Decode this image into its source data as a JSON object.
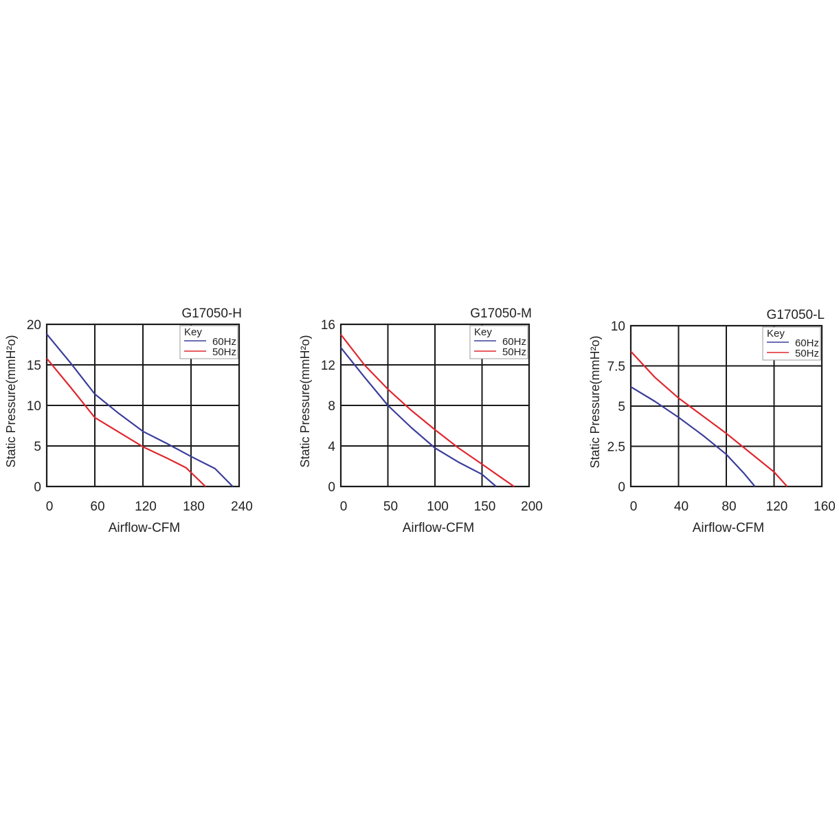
{
  "colors": {
    "s60": "#3a3d9a",
    "s50": "#e0262e",
    "grid": "#1a1a1a"
  },
  "chart_data": [
    {
      "type": "line",
      "title": "G17050-H",
      "xlabel": "Airflow-CFM",
      "ylabel": "Static Pressure(mmH²o)",
      "xlim": [
        0,
        240
      ],
      "ylim": [
        0,
        20
      ],
      "xticks": [
        "0",
        "60",
        "120",
        "180",
        "240"
      ],
      "yticks": [
        "0",
        "5",
        "10",
        "15",
        "20"
      ],
      "legend": {
        "title": "Key",
        "placement": "top-right"
      },
      "series": [
        {
          "name": "60Hz",
          "color": "#3a3d9a",
          "points": [
            [
              0,
              18.8
            ],
            [
              30,
              15.2
            ],
            [
              60,
              11.4
            ],
            [
              90,
              9.0
            ],
            [
              120,
              6.8
            ],
            [
              150,
              5.3
            ],
            [
              180,
              3.7
            ],
            [
              210,
              2.2
            ],
            [
              232,
              0
            ]
          ]
        },
        {
          "name": "50Hz",
          "color": "#e0262e",
          "points": [
            [
              0,
              15.8
            ],
            [
              30,
              12.2
            ],
            [
              60,
              8.5
            ],
            [
              90,
              6.7
            ],
            [
              120,
              4.9
            ],
            [
              150,
              3.5
            ],
            [
              174,
              2.3
            ],
            [
              198,
              0
            ]
          ]
        }
      ]
    },
    {
      "type": "line",
      "title": "G17050-M",
      "xlabel": "Airflow-CFM",
      "ylabel": "Static Pressure(mmH²o)",
      "xlim": [
        0,
        200
      ],
      "ylim": [
        0,
        16
      ],
      "xticks": [
        "0",
        "50",
        "100",
        "150",
        "200"
      ],
      "yticks": [
        "0",
        "4",
        "8",
        "12",
        "16"
      ],
      "legend": {
        "title": "Key",
        "placement": "top-right"
      },
      "series": [
        {
          "name": "60Hz",
          "color": "#3a3d9a",
          "points": [
            [
              0,
              13.7
            ],
            [
              25,
              10.8
            ],
            [
              50,
              8.0
            ],
            [
              75,
              5.8
            ],
            [
              100,
              3.8
            ],
            [
              125,
              2.4
            ],
            [
              150,
              1.2
            ],
            [
              165,
              0
            ]
          ]
        },
        {
          "name": "50Hz",
          "color": "#e0262e",
          "points": [
            [
              0,
              15.0
            ],
            [
              25,
              12.0
            ],
            [
              50,
              9.6
            ],
            [
              75,
              7.5
            ],
            [
              100,
              5.6
            ],
            [
              125,
              3.8
            ],
            [
              150,
              2.2
            ],
            [
              170,
              0.9
            ],
            [
              184,
              0
            ]
          ]
        }
      ]
    },
    {
      "type": "line",
      "title": "G17050-L",
      "xlabel": "Airflow-CFM",
      "ylabel": "Static Pressure(mmH²o)",
      "xlim": [
        0,
        160
      ],
      "ylim": [
        0,
        10
      ],
      "xticks": [
        "0",
        "40",
        "80",
        "120",
        "160"
      ],
      "yticks": [
        "0",
        "2.5",
        "5",
        "7.5",
        "10"
      ],
      "legend": {
        "title": "Key",
        "placement": "top-right"
      },
      "series": [
        {
          "name": "60Hz",
          "color": "#3a3d9a",
          "points": [
            [
              0,
              6.2
            ],
            [
              20,
              5.3
            ],
            [
              40,
              4.3
            ],
            [
              60,
              3.2
            ],
            [
              80,
              2.0
            ],
            [
              95,
              0.8
            ],
            [
              104,
              0
            ]
          ]
        },
        {
          "name": "50Hz",
          "color": "#e0262e",
          "points": [
            [
              0,
              8.4
            ],
            [
              20,
              6.8
            ],
            [
              40,
              5.5
            ],
            [
              60,
              4.4
            ],
            [
              80,
              3.3
            ],
            [
              100,
              2.1
            ],
            [
              120,
              0.9
            ],
            [
              131,
              0
            ]
          ]
        }
      ]
    }
  ]
}
